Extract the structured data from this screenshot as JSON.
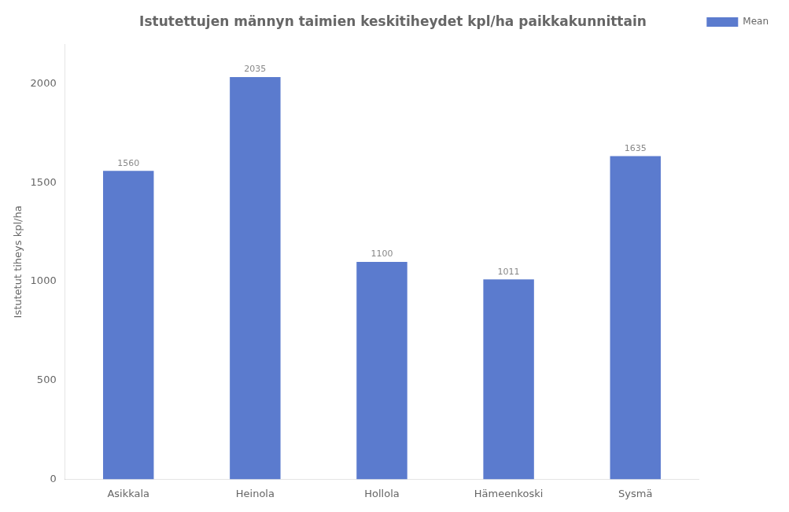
{
  "chart_data": {
    "type": "bar",
    "title": "Istutettujen männyn taimien keskitiheydet kpl/ha paikkakunnittain",
    "categories": [
      "Asikkala",
      "Heinola",
      "Hollola",
      "Hämeenkoski",
      "Sysmä"
    ],
    "series": [
      {
        "name": "Mean",
        "color": "#5b7bce",
        "values": [
          1560,
          2035,
          1100,
          1011,
          1635
        ]
      }
    ],
    "ylabel": "Istutetut tiheys kpl/ha",
    "ylim": [
      0,
      2200
    ],
    "yticks": [
      0,
      500,
      1000,
      1500,
      2000
    ],
    "grid": false,
    "legend": "upper right",
    "data_labels": true
  }
}
